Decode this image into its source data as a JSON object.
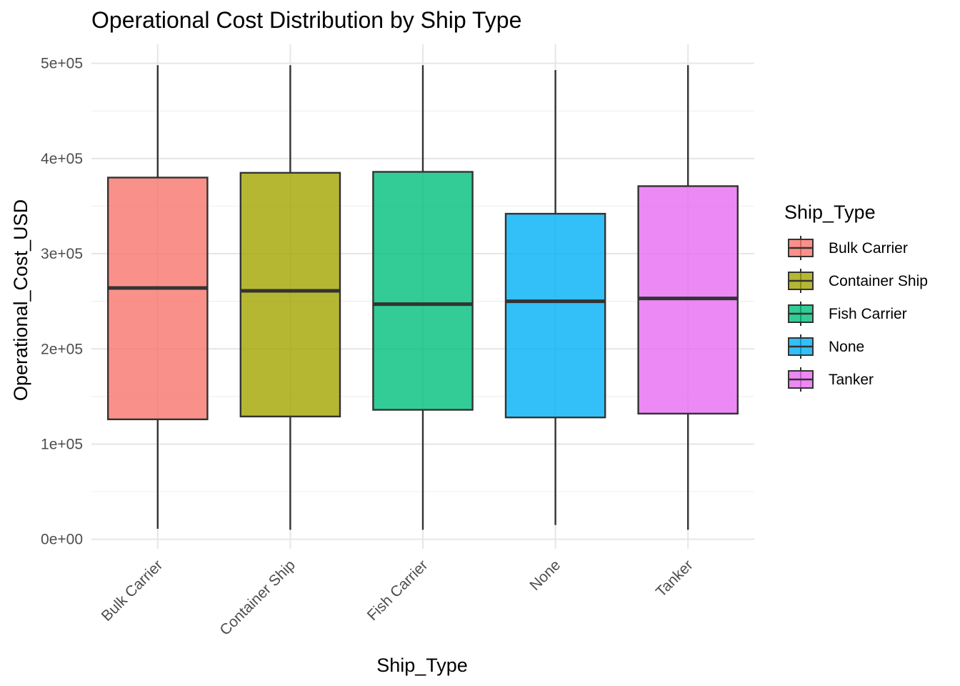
{
  "chart_data": {
    "type": "boxplot",
    "title": "Operational Cost Distribution by Ship Type",
    "xlabel": "Ship_Type",
    "ylabel": "Operational_Cost_USD",
    "ylim": [
      -10000,
      520000
    ],
    "yticks": [
      0,
      100000,
      200000,
      300000,
      400000,
      500000
    ],
    "ytick_labels": [
      "0e+00",
      "1e+05",
      "2e+05",
      "3e+05",
      "4e+05",
      "5e+05"
    ],
    "grid": true,
    "legend": {
      "title": "Ship_Type",
      "position": "right"
    },
    "categories": [
      "Bulk Carrier",
      "Container Ship",
      "Fish Carrier",
      "None",
      "Tanker"
    ],
    "series": [
      {
        "name": "Bulk Carrier",
        "color": "#F8766D",
        "min": 11000,
        "q1": 126000,
        "median": 264000,
        "q3": 380000,
        "max": 498000
      },
      {
        "name": "Container Ship",
        "color": "#A3A500",
        "min": 10000,
        "q1": 129000,
        "median": 261000,
        "q3": 385000,
        "max": 498000
      },
      {
        "name": "Fish Carrier",
        "color": "#00BF7D",
        "min": 10000,
        "q1": 136000,
        "median": 247000,
        "q3": 386000,
        "max": 498000
      },
      {
        "name": "None",
        "color": "#00B0F6",
        "min": 15000,
        "q1": 128000,
        "median": 250000,
        "q3": 342000,
        "max": 493000
      },
      {
        "name": "Tanker",
        "color": "#E76BF3",
        "min": 10000,
        "q1": 132000,
        "median": 253000,
        "q3": 371000,
        "max": 498000
      }
    ]
  }
}
